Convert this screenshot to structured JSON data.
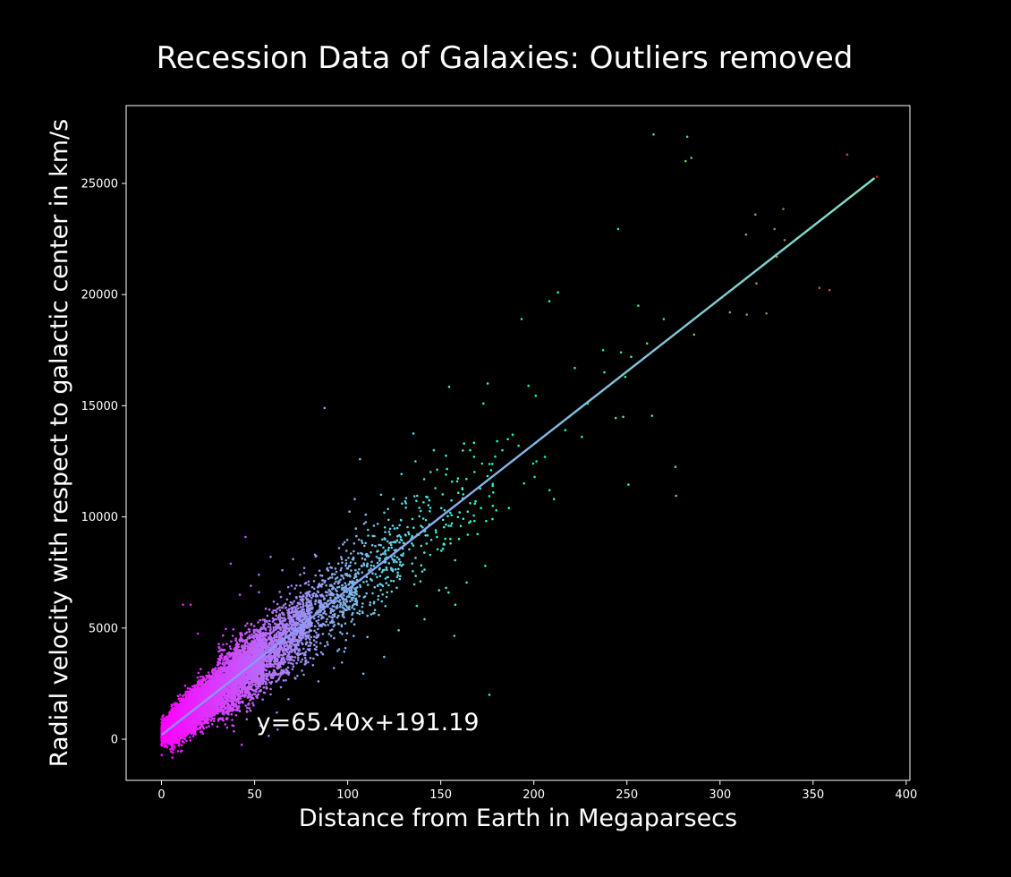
{
  "chart_data": {
    "type": "scatter",
    "title": "Recession Data of Galaxies: Outliers removed",
    "xlabel": "Distance from Earth in Megaparsecs",
    "ylabel": "Radial velocity with respect to galactic center in km/s",
    "xlim": [
      -19,
      402
    ],
    "ylim": [
      -1850,
      28500
    ],
    "xticks": [
      0,
      50,
      100,
      150,
      200,
      250,
      300,
      350,
      400
    ],
    "yticks": [
      0,
      5000,
      10000,
      15000,
      20000,
      25000
    ],
    "xtick_labels": [
      "0",
      "50",
      "100",
      "150",
      "200",
      "250",
      "300",
      "350",
      "400"
    ],
    "ytick_labels": [
      "0",
      "5000",
      "10000",
      "15000",
      "20000",
      "25000"
    ],
    "grid": false,
    "colormap": "rainbow",
    "colormap_range": [
      0,
      400
    ],
    "background_color": "#000000",
    "foreground_color": "#ffffff",
    "fit_line": {
      "slope": 65.4,
      "intercept": 191.19,
      "x_range": [
        0,
        383
      ],
      "color_start": "#8c8cff",
      "color_end": "#80e0c8"
    },
    "annotation": {
      "text": "y=65.40x+191.19",
      "x": 51,
      "y": 400
    },
    "points": [
      [
        87.6,
        14900
      ],
      [
        106.6,
        12600
      ],
      [
        135.3,
        13750
      ],
      [
        154.5,
        15850
      ],
      [
        175.2,
        16000
      ],
      [
        172.9,
        15100
      ],
      [
        193.4,
        18900
      ],
      [
        197.1,
        15900
      ],
      [
        201.0,
        15450
      ],
      [
        208.3,
        19700
      ],
      [
        213.0,
        20100
      ],
      [
        222.0,
        16700
      ],
      [
        229.0,
        15100
      ],
      [
        237.2,
        17500
      ],
      [
        245.3,
        22950
      ],
      [
        246.8,
        17400
      ],
      [
        252.3,
        17200
      ],
      [
        256.1,
        19500
      ],
      [
        260.8,
        17800
      ],
      [
        264.3,
        27200
      ],
      [
        269.8,
        18900
      ],
      [
        281.5,
        26000
      ],
      [
        282.4,
        27100
      ],
      [
        284.6,
        26150
      ],
      [
        286.1,
        18200
      ],
      [
        305.3,
        19200
      ],
      [
        314.0,
        22700
      ],
      [
        314.4,
        19100
      ],
      [
        319.0,
        23600
      ],
      [
        319.6,
        20500
      ],
      [
        324.9,
        19150
      ],
      [
        329.3,
        22950
      ],
      [
        330.5,
        21700
      ],
      [
        334.0,
        23850
      ],
      [
        334.7,
        22450
      ],
      [
        353.4,
        20300
      ],
      [
        358.8,
        20200
      ],
      [
        368.3,
        26300
      ],
      [
        384.3,
        25300
      ],
      [
        244.0,
        14450
      ],
      [
        248.0,
        14500
      ],
      [
        263.5,
        14550
      ],
      [
        250.8,
        11450
      ],
      [
        276.1,
        12250
      ],
      [
        276.4,
        10950
      ],
      [
        225.8,
        13600
      ],
      [
        237.9,
        16500
      ],
      [
        249.1,
        16300
      ],
      [
        176.1,
        2000
      ],
      [
        157.3,
        4650
      ],
      [
        157.8,
        6050
      ],
      [
        163.9,
        7050
      ],
      [
        173.9,
        7800
      ],
      [
        45.1,
        9100
      ],
      [
        37.2,
        7900
      ],
      [
        11.5,
        6050
      ],
      [
        15.6,
        6050
      ],
      [
        19.5,
        4750
      ],
      [
        43.1,
        -250
      ],
      [
        57.6,
        150
      ],
      [
        85.8,
        3900
      ],
      [
        96.9,
        3450
      ],
      [
        108.4,
        2950
      ],
      [
        55.0,
        2100
      ],
      [
        6.6,
        -300
      ],
      [
        4.8,
        -450
      ],
      [
        10.4,
        -550
      ],
      [
        12.4,
        10
      ],
      [
        180.3,
        13400
      ],
      [
        183.1,
        13000
      ],
      [
        186.0,
        13500
      ],
      [
        188.6,
        13700
      ],
      [
        191.8,
        13200
      ],
      [
        199.6,
        12400
      ],
      [
        201.4,
        12500
      ],
      [
        205.9,
        12700
      ],
      [
        208.4,
        11200
      ],
      [
        210.8,
        10800
      ],
      [
        216.9,
        13900
      ],
      [
        200.4,
        11800
      ],
      [
        194.7,
        11500
      ],
      [
        186.6,
        10400
      ],
      [
        178.2,
        11100
      ],
      [
        172.2,
        12400
      ],
      [
        165.8,
        13000
      ],
      [
        162.5,
        13300
      ],
      [
        158.8,
        11600
      ],
      [
        152.8,
        11900
      ],
      [
        146.3,
        13000
      ],
      [
        141.1,
        11700
      ],
      [
        136.4,
        12500
      ],
      [
        130.9,
        10700
      ],
      [
        124.5,
        10800
      ],
      [
        117.9,
        11000
      ],
      [
        114.1,
        9600
      ],
      [
        109.7,
        10100
      ],
      [
        103.8,
        10800
      ],
      [
        141.3,
        5400
      ],
      [
        137.1,
        6000
      ],
      [
        149.1,
        6700
      ],
      [
        154.2,
        6600
      ],
      [
        164.5,
        9200
      ],
      [
        166.0,
        9800
      ],
      [
        171.6,
        10400
      ],
      [
        177.8,
        9900
      ],
      [
        168.7,
        10700
      ],
      [
        160.1,
        10200
      ],
      [
        155.5,
        9600
      ],
      [
        147.5,
        9300
      ],
      [
        139.5,
        8700
      ],
      [
        131.0,
        9200
      ],
      [
        125.2,
        8500
      ],
      [
        120.1,
        9000
      ],
      [
        115.5,
        8200
      ],
      [
        109.0,
        8700
      ],
      [
        101.3,
        7800
      ],
      [
        95.4,
        8600
      ],
      [
        90.0,
        7900
      ],
      [
        82.4,
        8300
      ],
      [
        76.7,
        7700
      ],
      [
        70.7,
        8100
      ],
      [
        64.9,
        7600
      ],
      [
        58.6,
        8200
      ],
      [
        52.3,
        7400
      ],
      [
        48.0,
        6900
      ],
      [
        42.1,
        6500
      ],
      [
        127.4,
        4900
      ],
      [
        119.6,
        3700
      ],
      [
        110.6,
        4600
      ],
      [
        98.8,
        4100
      ],
      [
        92.6,
        3200
      ],
      [
        84.3,
        2600
      ],
      [
        76.4,
        2900
      ],
      [
        68.2,
        1800
      ],
      [
        62.0,
        1200
      ],
      [
        53.1,
        600
      ],
      [
        45.8,
        900
      ],
      [
        38.6,
        600
      ]
    ]
  }
}
